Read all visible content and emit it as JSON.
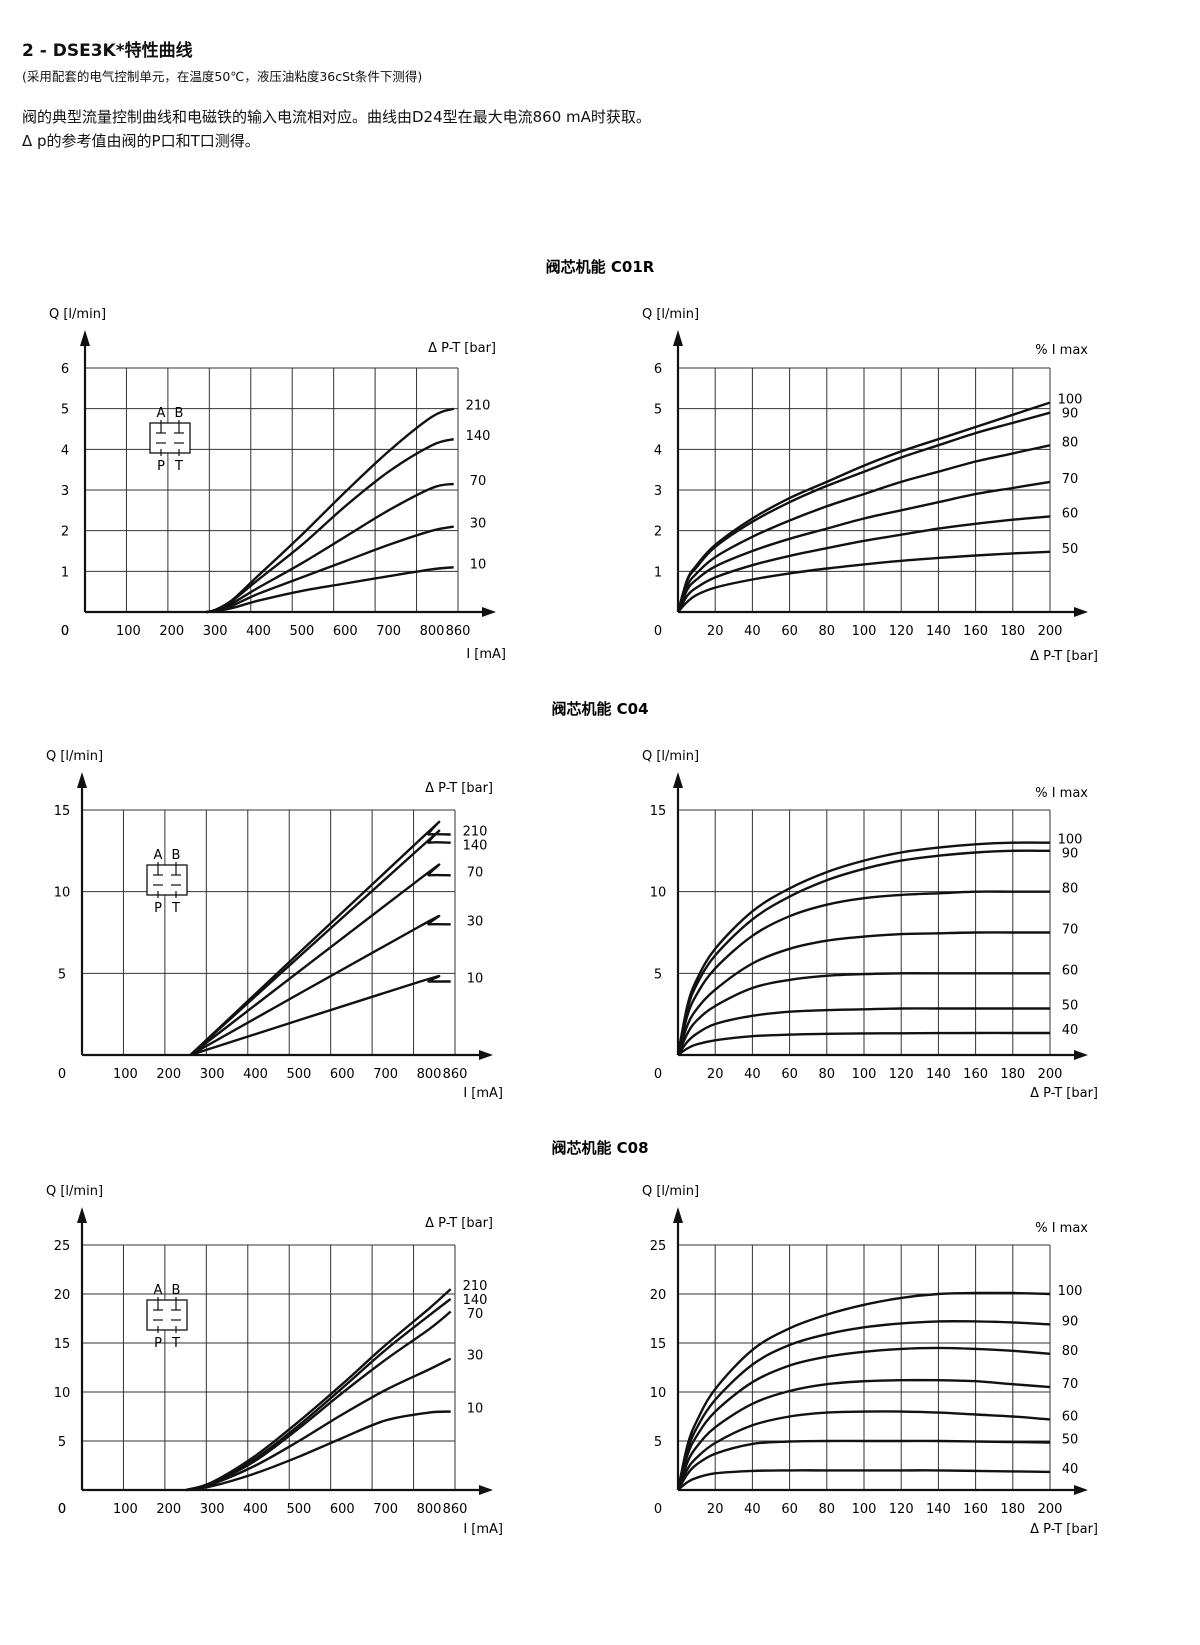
{
  "header": {
    "title": "2 - DSE3K*特性曲线",
    "subtitle": "(采用配套的电气控制单元，在温度50℃，液压油粘度36cSt条件下测得)",
    "paragraph1": "阀的典型流量控制曲线和电磁铁的输入电流相对应。曲线由D24型在最大电流860 mA时获取。",
    "paragraph2": "Δ p的参考值由阀的P口和T口测得。"
  },
  "symbol": {
    "port_A": "A",
    "port_B": "B",
    "port_P": "P",
    "port_T": "T"
  },
  "sections": [
    {
      "title": "阀芯机能 C01R"
    },
    {
      "title": "阀芯机能 C04"
    },
    {
      "title": "阀芯机能 C08"
    }
  ],
  "chart_data": [
    {
      "section": "阀芯机能 C01R",
      "type": "line",
      "ylabel": "Q [l/min]",
      "xlabel": "I [mA]",
      "legend_title": "Δ P-T  [bar]",
      "xticks": [
        "0",
        "100",
        "200",
        "300",
        "400",
        "500",
        "600",
        "700",
        "800",
        "860"
      ],
      "yticks": [
        "0",
        "1",
        "2",
        "3",
        "4",
        "5",
        "6"
      ],
      "xlim": [
        0,
        860
      ],
      "ylim": [
        0,
        6
      ],
      "grid": true,
      "series": [
        {
          "name": "210",
          "x": [
            280,
            300,
            340,
            400,
            500,
            600,
            700,
            800,
            850
          ],
          "y": [
            0,
            0.05,
            0.3,
            0.9,
            1.9,
            2.95,
            3.95,
            4.8,
            5.0
          ]
        },
        {
          "name": "140",
          "x": [
            280,
            300,
            340,
            400,
            500,
            600,
            700,
            800,
            850
          ],
          "y": [
            0,
            0.05,
            0.28,
            0.8,
            1.65,
            2.6,
            3.45,
            4.1,
            4.25
          ]
        },
        {
          "name": "70",
          "x": [
            280,
            300,
            340,
            400,
            500,
            600,
            700,
            800,
            850
          ],
          "y": [
            0,
            0.04,
            0.22,
            0.6,
            1.2,
            1.85,
            2.5,
            3.05,
            3.15
          ]
        },
        {
          "name": "30",
          "x": [
            280,
            300,
            340,
            400,
            500,
            600,
            700,
            800,
            850
          ],
          "y": [
            0,
            0.03,
            0.16,
            0.45,
            0.85,
            1.25,
            1.65,
            2.0,
            2.1
          ]
        },
        {
          "name": "10",
          "x": [
            280,
            300,
            340,
            400,
            500,
            600,
            700,
            800,
            850
          ],
          "y": [
            0,
            0.02,
            0.1,
            0.28,
            0.52,
            0.7,
            0.88,
            1.05,
            1.1
          ]
        }
      ]
    },
    {
      "section": "阀芯机能 C01R",
      "type": "line",
      "ylabel": "Q [l/min]",
      "xlabel": "Δ P-T [bar]",
      "legend_title": "% I max",
      "xticks": [
        "0",
        "20",
        "40",
        "60",
        "80",
        "100",
        "120",
        "140",
        "160",
        "180",
        "200"
      ],
      "yticks": [
        "",
        "1",
        "2",
        "3",
        "4",
        "5",
        "6"
      ],
      "xlim": [
        0,
        200
      ],
      "ylim": [
        0,
        6
      ],
      "grid": true,
      "series": [
        {
          "name": "100",
          "x": [
            0,
            5,
            10,
            20,
            40,
            60,
            80,
            100,
            120,
            140,
            160,
            180,
            200
          ],
          "y": [
            0,
            0.8,
            1.15,
            1.65,
            2.3,
            2.8,
            3.2,
            3.6,
            3.95,
            4.25,
            4.55,
            4.85,
            5.15
          ]
        },
        {
          "name": "90",
          "x": [
            0,
            5,
            10,
            20,
            40,
            60,
            80,
            100,
            120,
            140,
            160,
            180,
            200
          ],
          "y": [
            0,
            0.78,
            1.1,
            1.6,
            2.22,
            2.7,
            3.1,
            3.45,
            3.8,
            4.1,
            4.4,
            4.65,
            4.9
          ]
        },
        {
          "name": "80",
          "x": [
            0,
            5,
            10,
            20,
            40,
            60,
            80,
            100,
            120,
            140,
            160,
            180,
            200
          ],
          "y": [
            0,
            0.65,
            0.95,
            1.35,
            1.85,
            2.25,
            2.6,
            2.9,
            3.2,
            3.45,
            3.7,
            3.9,
            4.1
          ]
        },
        {
          "name": "70",
          "x": [
            0,
            5,
            10,
            20,
            40,
            60,
            80,
            100,
            120,
            140,
            160,
            180,
            200
          ],
          "y": [
            0,
            0.55,
            0.8,
            1.12,
            1.5,
            1.8,
            2.05,
            2.3,
            2.5,
            2.7,
            2.9,
            3.05,
            3.2
          ]
        },
        {
          "name": "60",
          "x": [
            0,
            5,
            10,
            20,
            40,
            60,
            80,
            100,
            120,
            140,
            160,
            180,
            200
          ],
          "y": [
            0,
            0.4,
            0.6,
            0.85,
            1.15,
            1.38,
            1.57,
            1.75,
            1.9,
            2.05,
            2.17,
            2.27,
            2.35
          ]
        },
        {
          "name": "50",
          "x": [
            0,
            5,
            10,
            20,
            40,
            60,
            80,
            100,
            120,
            140,
            160,
            180,
            200
          ],
          "y": [
            0,
            0.25,
            0.42,
            0.6,
            0.8,
            0.95,
            1.07,
            1.17,
            1.26,
            1.33,
            1.39,
            1.44,
            1.48
          ]
        }
      ]
    },
    {
      "section": "阀芯机能 C04",
      "type": "line",
      "ylabel": "Q [l/min]",
      "xlabel": "I [mA]",
      "legend_title": "Δ P-T [bar]",
      "xticks": [
        "0",
        "100",
        "200",
        "300",
        "400",
        "500",
        "600",
        "700",
        "800",
        "860"
      ],
      "yticks": [
        "",
        "5",
        "10",
        "15"
      ],
      "xlim": [
        0,
        860
      ],
      "ylim": [
        0,
        15
      ],
      "grid": true,
      "series": [
        {
          "name": "210",
          "x": [
            250,
            780,
            800,
            850
          ],
          "y": [
            0,
            13.2,
            13.5,
            13.5
          ]
        },
        {
          "name": "140",
          "x": [
            250,
            780,
            800,
            850
          ],
          "y": [
            0,
            12.7,
            13.0,
            13.0
          ]
        },
        {
          "name": "70",
          "x": [
            250,
            780,
            800,
            850
          ],
          "y": [
            0,
            10.8,
            11.0,
            11.0
          ]
        },
        {
          "name": "30",
          "x": [
            250,
            780,
            800,
            850
          ],
          "y": [
            0,
            7.9,
            8.0,
            8.0
          ]
        },
        {
          "name": "10",
          "x": [
            250,
            780,
            800,
            850
          ],
          "y": [
            0,
            4.5,
            4.5,
            4.5
          ]
        }
      ]
    },
    {
      "section": "阀芯机能 C04",
      "type": "line",
      "ylabel": "Q [l/min]",
      "xlabel": "Δ P-T [bar]",
      "legend_title": "% I max",
      "xticks": [
        "0",
        "20",
        "40",
        "60",
        "80",
        "100",
        "120",
        "140",
        "160",
        "180",
        "200"
      ],
      "yticks": [
        "",
        "5",
        "10",
        "15"
      ],
      "xlim": [
        0,
        200
      ],
      "ylim": [
        0,
        15
      ],
      "grid": true,
      "series": [
        {
          "name": "100",
          "x": [
            0,
            5,
            10,
            20,
            40,
            60,
            80,
            100,
            120,
            140,
            160,
            180,
            200
          ],
          "y": [
            0,
            3.0,
            4.6,
            6.5,
            8.8,
            10.2,
            11.2,
            11.9,
            12.4,
            12.7,
            12.9,
            13.0,
            13.0
          ]
        },
        {
          "name": "90",
          "x": [
            0,
            5,
            10,
            20,
            40,
            60,
            80,
            100,
            120,
            140,
            160,
            180,
            200
          ],
          "y": [
            0,
            2.8,
            4.3,
            6.1,
            8.3,
            9.7,
            10.7,
            11.4,
            11.9,
            12.2,
            12.4,
            12.5,
            12.5
          ]
        },
        {
          "name": "80",
          "x": [
            0,
            5,
            10,
            20,
            40,
            60,
            80,
            100,
            120,
            140,
            160,
            180,
            200
          ],
          "y": [
            0,
            2.4,
            3.7,
            5.3,
            7.3,
            8.5,
            9.2,
            9.6,
            9.8,
            9.9,
            10.0,
            10.0,
            10.0
          ]
        },
        {
          "name": "70",
          "x": [
            0,
            5,
            10,
            20,
            40,
            60,
            80,
            100,
            120,
            140,
            160,
            180,
            200
          ],
          "y": [
            0,
            1.8,
            2.8,
            4.0,
            5.6,
            6.5,
            7.0,
            7.25,
            7.4,
            7.45,
            7.5,
            7.5,
            7.5
          ]
        },
        {
          "name": "60",
          "x": [
            0,
            5,
            10,
            20,
            40,
            60,
            80,
            100,
            120,
            140,
            160,
            180,
            200
          ],
          "y": [
            0,
            1.3,
            2.1,
            3.0,
            4.1,
            4.6,
            4.85,
            4.95,
            5.0,
            5.0,
            5.0,
            5.0,
            5.0
          ]
        },
        {
          "name": "50",
          "x": [
            0,
            5,
            10,
            20,
            40,
            60,
            80,
            100,
            120,
            140,
            160,
            180,
            200
          ],
          "y": [
            0,
            0.8,
            1.3,
            1.9,
            2.4,
            2.65,
            2.75,
            2.8,
            2.85,
            2.85,
            2.85,
            2.85,
            2.85
          ]
        },
        {
          "name": "40",
          "x": [
            0,
            5,
            10,
            20,
            40,
            60,
            80,
            100,
            120,
            140,
            160,
            180,
            200
          ],
          "y": [
            0,
            0.4,
            0.65,
            0.9,
            1.15,
            1.25,
            1.3,
            1.32,
            1.33,
            1.34,
            1.35,
            1.35,
            1.35
          ]
        }
      ]
    },
    {
      "section": "阀芯机能 C08",
      "type": "line",
      "ylabel": "Q [l/min]",
      "xlabel": "I [mA]",
      "legend_title": "Δ P-T [bar]",
      "xticks": [
        "0",
        "100",
        "200",
        "300",
        "400",
        "500",
        "600",
        "700",
        "800",
        "860"
      ],
      "yticks": [
        "0",
        "5",
        "10",
        "15",
        "20",
        "25"
      ],
      "xlim": [
        0,
        860
      ],
      "ylim": [
        0,
        25
      ],
      "grid": true,
      "series": [
        {
          "name": "210",
          "x": [
            240,
            300,
            400,
            500,
            600,
            700,
            800,
            850
          ],
          "y": [
            0,
            0.8,
            3.5,
            7.0,
            10.8,
            14.8,
            18.5,
            20.5
          ]
        },
        {
          "name": "140",
          "x": [
            240,
            300,
            400,
            500,
            600,
            700,
            800,
            850
          ],
          "y": [
            0,
            0.7,
            3.2,
            6.6,
            10.4,
            14.3,
            17.8,
            19.5
          ]
        },
        {
          "name": "70",
          "x": [
            240,
            300,
            400,
            500,
            600,
            700,
            800,
            850
          ],
          "y": [
            0,
            0.7,
            3.0,
            6.3,
            9.9,
            13.3,
            16.4,
            18.2
          ]
        },
        {
          "name": "30",
          "x": [
            240,
            300,
            400,
            500,
            600,
            700,
            800,
            850
          ],
          "y": [
            0,
            0.6,
            2.5,
            5.0,
            7.7,
            10.2,
            12.3,
            13.4
          ]
        },
        {
          "name": "10",
          "x": [
            240,
            300,
            400,
            500,
            600,
            700,
            800,
            850
          ],
          "y": [
            0,
            0.4,
            1.7,
            3.4,
            5.3,
            7.1,
            7.9,
            8.0
          ]
        }
      ]
    },
    {
      "section": "阀芯机能 C08",
      "type": "line",
      "ylabel": "Q [l/min]",
      "xlabel": "Δ P-T [bar]",
      "legend_title": "% I max",
      "xticks": [
        "0",
        "20",
        "40",
        "60",
        "80",
        "100",
        "120",
        "140",
        "160",
        "180",
        "200"
      ],
      "yticks": [
        "",
        "5",
        "10",
        "15",
        "20",
        "25"
      ],
      "xlim": [
        0,
        200
      ],
      "ylim": [
        0,
        25
      ],
      "grid": true,
      "series": [
        {
          "name": "100",
          "x": [
            0,
            5,
            10,
            20,
            40,
            60,
            80,
            100,
            120,
            140,
            160,
            180,
            200
          ],
          "y": [
            0,
            4.5,
            7.0,
            10.3,
            14.3,
            16.5,
            17.9,
            18.9,
            19.6,
            20.0,
            20.1,
            20.1,
            20.0
          ]
        },
        {
          "name": "90",
          "x": [
            0,
            5,
            10,
            20,
            40,
            60,
            80,
            100,
            120,
            140,
            160,
            180,
            200
          ],
          "y": [
            0,
            4.0,
            6.3,
            9.2,
            12.8,
            14.8,
            15.9,
            16.6,
            17.0,
            17.2,
            17.2,
            17.1,
            16.9
          ]
        },
        {
          "name": "80",
          "x": [
            0,
            5,
            10,
            20,
            40,
            60,
            80,
            100,
            120,
            140,
            160,
            180,
            200
          ],
          "y": [
            0,
            3.5,
            5.5,
            8.0,
            11.0,
            12.7,
            13.6,
            14.1,
            14.4,
            14.5,
            14.4,
            14.2,
            13.9
          ]
        },
        {
          "name": "70",
          "x": [
            0,
            5,
            10,
            20,
            40,
            60,
            80,
            100,
            120,
            140,
            160,
            180,
            200
          ],
          "y": [
            0,
            2.8,
            4.4,
            6.4,
            8.8,
            10.1,
            10.8,
            11.1,
            11.2,
            11.2,
            11.1,
            10.8,
            10.5
          ]
        },
        {
          "name": "60",
          "x": [
            0,
            5,
            10,
            20,
            40,
            60,
            80,
            100,
            120,
            140,
            160,
            180,
            200
          ],
          "y": [
            0,
            2.1,
            3.3,
            4.8,
            6.6,
            7.5,
            7.9,
            8.0,
            8.0,
            7.9,
            7.7,
            7.5,
            7.2
          ]
        },
        {
          "name": "50",
          "x": [
            0,
            5,
            10,
            20,
            40,
            60,
            80,
            100,
            120,
            140,
            160,
            180,
            200
          ],
          "y": [
            0,
            1.6,
            2.6,
            3.7,
            4.7,
            4.95,
            5.0,
            5.0,
            5.0,
            5.0,
            4.95,
            4.9,
            4.85
          ]
        },
        {
          "name": "40",
          "x": [
            0,
            5,
            10,
            20,
            40,
            60,
            80,
            100,
            120,
            140,
            160,
            180,
            200
          ],
          "y": [
            0,
            0.8,
            1.25,
            1.7,
            1.95,
            2.0,
            2.0,
            2.0,
            2.0,
            2.0,
            1.95,
            1.9,
            1.85
          ]
        }
      ]
    }
  ]
}
